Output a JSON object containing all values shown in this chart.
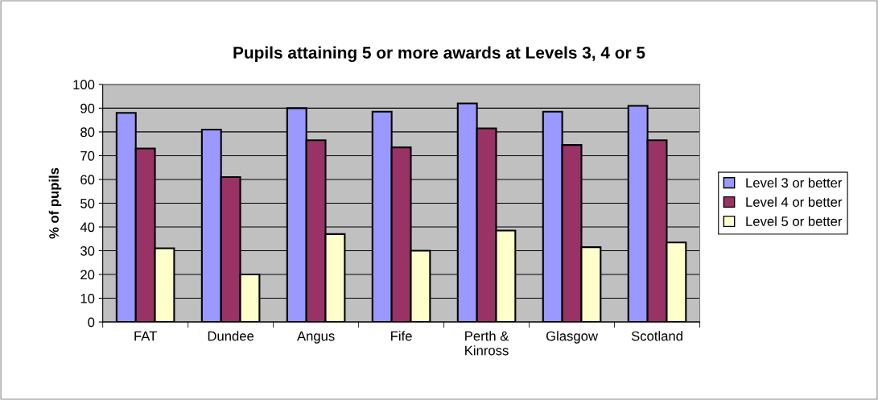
{
  "chart_data": {
    "type": "bar",
    "title": "Pupils attaining 5 or more awards at Levels 3, 4 or 5",
    "ylabel": "% of pupils",
    "categories": [
      "FAT",
      "Dundee",
      "Angus",
      "Fife",
      "Perth &\nKinross",
      "Glasgow",
      "Scotland"
    ],
    "series": [
      {
        "name": "Level 3 or better",
        "color": "#9999ff",
        "values": [
          88,
          81,
          90,
          88.5,
          92,
          88.5,
          91
        ]
      },
      {
        "name": "Level 4 or better",
        "color": "#993366",
        "values": [
          73,
          61,
          76.5,
          73.5,
          81.5,
          74.5,
          76.5
        ]
      },
      {
        "name": "Level 5 or better",
        "color": "#ffffcc",
        "values": [
          31,
          20,
          37,
          30,
          38.5,
          31.5,
          33.5
        ]
      }
    ],
    "ylim": [
      0,
      100
    ],
    "yticks": [
      0,
      10,
      20,
      30,
      40,
      50,
      60,
      70,
      80,
      90,
      100
    ],
    "grid": "y",
    "legend": "right"
  }
}
